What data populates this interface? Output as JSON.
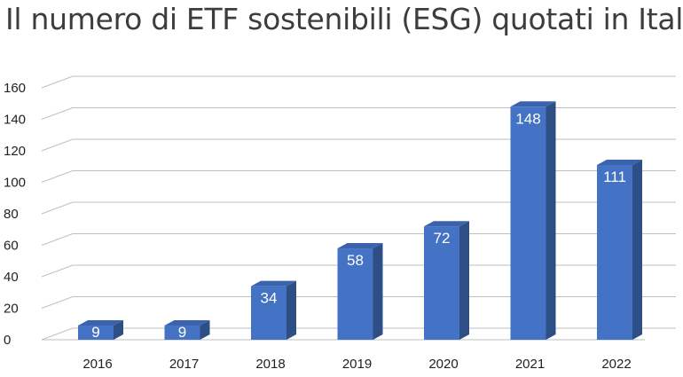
{
  "chart_data": {
    "type": "bar",
    "title": "Il numero di ETF sostenibili (ESG) quotati in Italia",
    "categories": [
      "2016",
      "2017",
      "2018",
      "2019",
      "2020",
      "2021",
      "2022"
    ],
    "values": [
      9,
      9,
      34,
      58,
      72,
      148,
      111
    ],
    "ylim": [
      0,
      160
    ],
    "yticks": [
      0,
      20,
      40,
      60,
      80,
      100,
      120,
      140,
      160
    ],
    "grid": true,
    "data_labels": true,
    "style": "3d-column",
    "colors": {
      "bar_front": "#4472c4",
      "bar_side": "#2e4f86",
      "bar_top": "#3a62ad",
      "grid": "#bfbfbf"
    }
  }
}
